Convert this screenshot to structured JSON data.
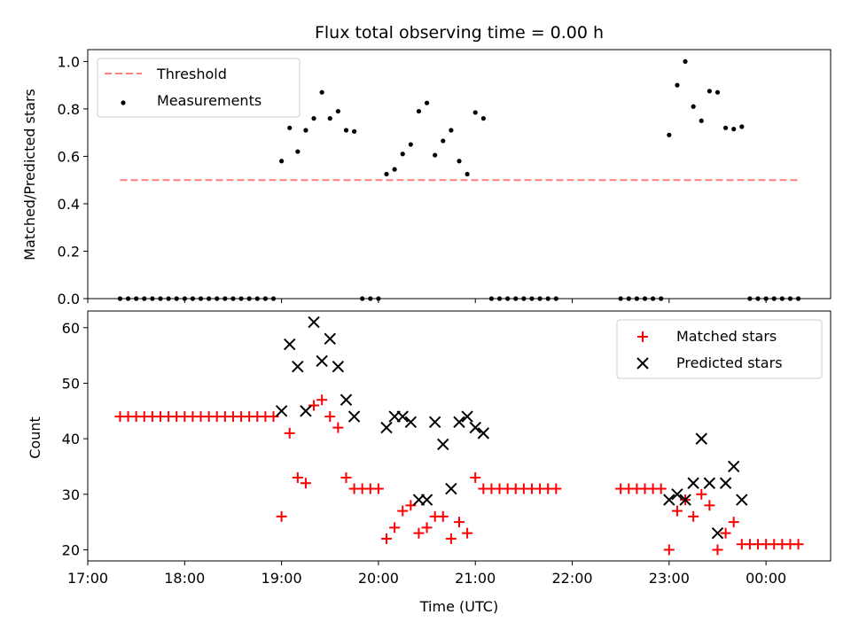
{
  "chart_data": [
    {
      "type": "scatter",
      "title": "Flux total observing time = 0.00 h",
      "xlabel": "",
      "ylabel": "Matched/Predicted stars",
      "xlim": [
        "17:00",
        "00:40"
      ],
      "ylim": [
        0,
        1.05
      ],
      "yticks": [
        "0.0",
        "0.2",
        "0.4",
        "0.6",
        "0.8",
        "1.0"
      ],
      "legend_position": "top-left",
      "grid": false,
      "series": [
        {
          "name": "Threshold",
          "kind": "dashed-line",
          "color": "#ff7f7f",
          "x": [
            "17:20",
            "24:20"
          ],
          "y": [
            0.5,
            0.5
          ]
        },
        {
          "name": "Measurements",
          "kind": "dots",
          "color": "#000000",
          "x": [
            "17:20",
            "17:25",
            "17:30",
            "17:35",
            "17:40",
            "17:45",
            "17:50",
            "17:55",
            "18:00",
            "18:05",
            "18:10",
            "18:15",
            "18:20",
            "18:25",
            "18:30",
            "18:35",
            "18:40",
            "18:45",
            "18:50",
            "18:55",
            "19:00",
            "19:05",
            "19:10",
            "19:15",
            "19:20",
            "19:25",
            "19:30",
            "19:35",
            "19:40",
            "19:45",
            "19:50",
            "19:55",
            "20:00",
            "20:05",
            "20:10",
            "20:15",
            "20:20",
            "20:25",
            "20:30",
            "20:35",
            "20:40",
            "20:45",
            "20:50",
            "20:55",
            "21:00",
            "21:05",
            "21:10",
            "21:15",
            "21:20",
            "21:25",
            "21:30",
            "21:35",
            "21:40",
            "21:45",
            "21:50",
            "22:30",
            "22:35",
            "22:40",
            "22:45",
            "22:50",
            "22:55",
            "23:00",
            "23:05",
            "23:10",
            "23:15",
            "23:20",
            "23:25",
            "23:30",
            "23:35",
            "23:40",
            "23:45",
            "23:50",
            "23:55",
            "24:00",
            "24:05",
            "24:10",
            "24:15",
            "24:20"
          ],
          "y": [
            0,
            0,
            0,
            0,
            0,
            0,
            0,
            0,
            0,
            0,
            0,
            0,
            0,
            0,
            0,
            0,
            0,
            0,
            0,
            0,
            0.58,
            0.72,
            0.62,
            0.71,
            0.76,
            0.87,
            0.76,
            0.79,
            0.71,
            0.705,
            0,
            0,
            0,
            0.525,
            0.545,
            0.61,
            0.65,
            0.79,
            0.825,
            0.605,
            0.665,
            0.71,
            0.58,
            0.525,
            0.785,
            0.76,
            0,
            0,
            0,
            0,
            0,
            0,
            0,
            0,
            0,
            0,
            0,
            0,
            0,
            0,
            0,
            0.69,
            0.9,
            1.0,
            0.81,
            0.75,
            0.875,
            0.87,
            0.72,
            0.715,
            0.725,
            0,
            0,
            0,
            0,
            0,
            0,
            0
          ]
        }
      ]
    },
    {
      "type": "scatter",
      "title": "",
      "xlabel": "Time (UTC)",
      "ylabel": "Count",
      "xlim": [
        "17:00",
        "00:40"
      ],
      "ylim": [
        18,
        63
      ],
      "xticks": [
        "17:00",
        "18:00",
        "19:00",
        "20:00",
        "21:00",
        "22:00",
        "23:00",
        "00:00"
      ],
      "yticks": [
        "20",
        "30",
        "40",
        "50",
        "60"
      ],
      "legend_position": "top-right",
      "grid": false,
      "series": [
        {
          "name": "Matched stars",
          "kind": "plus",
          "color": "#ff0000",
          "x": [
            "17:20",
            "17:25",
            "17:30",
            "17:35",
            "17:40",
            "17:45",
            "17:50",
            "17:55",
            "18:00",
            "18:05",
            "18:10",
            "18:15",
            "18:20",
            "18:25",
            "18:30",
            "18:35",
            "18:40",
            "18:45",
            "18:50",
            "18:55",
            "19:00",
            "19:05",
            "19:10",
            "19:15",
            "19:20",
            "19:25",
            "19:30",
            "19:35",
            "19:40",
            "19:45",
            "19:50",
            "19:55",
            "20:00",
            "20:05",
            "20:10",
            "20:15",
            "20:20",
            "20:25",
            "20:30",
            "20:35",
            "20:40",
            "20:45",
            "20:50",
            "20:55",
            "21:00",
            "21:05",
            "21:10",
            "21:15",
            "21:20",
            "21:25",
            "21:30",
            "21:35",
            "21:40",
            "21:45",
            "21:50",
            "22:30",
            "22:35",
            "22:40",
            "22:45",
            "22:50",
            "22:55",
            "23:00",
            "23:05",
            "23:10",
            "23:15",
            "23:20",
            "23:25",
            "23:30",
            "23:35",
            "23:40",
            "23:45",
            "23:50",
            "23:55",
            "24:00",
            "24:05",
            "24:10",
            "24:15",
            "24:20"
          ],
          "y": [
            44,
            44,
            44,
            44,
            44,
            44,
            44,
            44,
            44,
            44,
            44,
            44,
            44,
            44,
            44,
            44,
            44,
            44,
            44,
            44,
            26,
            41,
            33,
            32,
            46,
            47,
            44,
            42,
            33,
            31,
            31,
            31,
            31,
            22,
            24,
            27,
            28,
            23,
            24,
            26,
            26,
            22,
            25,
            23,
            33,
            31,
            31,
            31,
            31,
            31,
            31,
            31,
            31,
            31,
            31,
            31,
            31,
            31,
            31,
            31,
            31,
            20,
            27,
            29,
            26,
            30,
            28,
            20,
            23,
            25,
            21,
            21,
            21,
            21,
            21,
            21,
            21,
            21
          ]
        },
        {
          "name": "Predicted stars",
          "kind": "x",
          "color": "#000000",
          "x": [
            "19:00",
            "19:05",
            "19:10",
            "19:15",
            "19:20",
            "19:25",
            "19:30",
            "19:35",
            "19:40",
            "19:45",
            "20:05",
            "20:10",
            "20:15",
            "20:20",
            "20:25",
            "20:30",
            "20:35",
            "20:40",
            "20:45",
            "20:50",
            "20:55",
            "21:00",
            "21:05",
            "23:00",
            "23:05",
            "23:10",
            "23:15",
            "23:20",
            "23:25",
            "23:30",
            "23:35",
            "23:40",
            "23:45"
          ],
          "y": [
            45,
            57,
            53,
            45,
            61,
            54,
            58,
            53,
            47,
            44,
            42,
            44,
            44,
            43,
            29,
            29,
            43,
            39,
            31,
            43,
            44,
            42,
            41,
            29,
            30,
            29,
            32,
            40,
            32,
            23,
            32,
            35,
            29
          ]
        }
      ]
    }
  ]
}
